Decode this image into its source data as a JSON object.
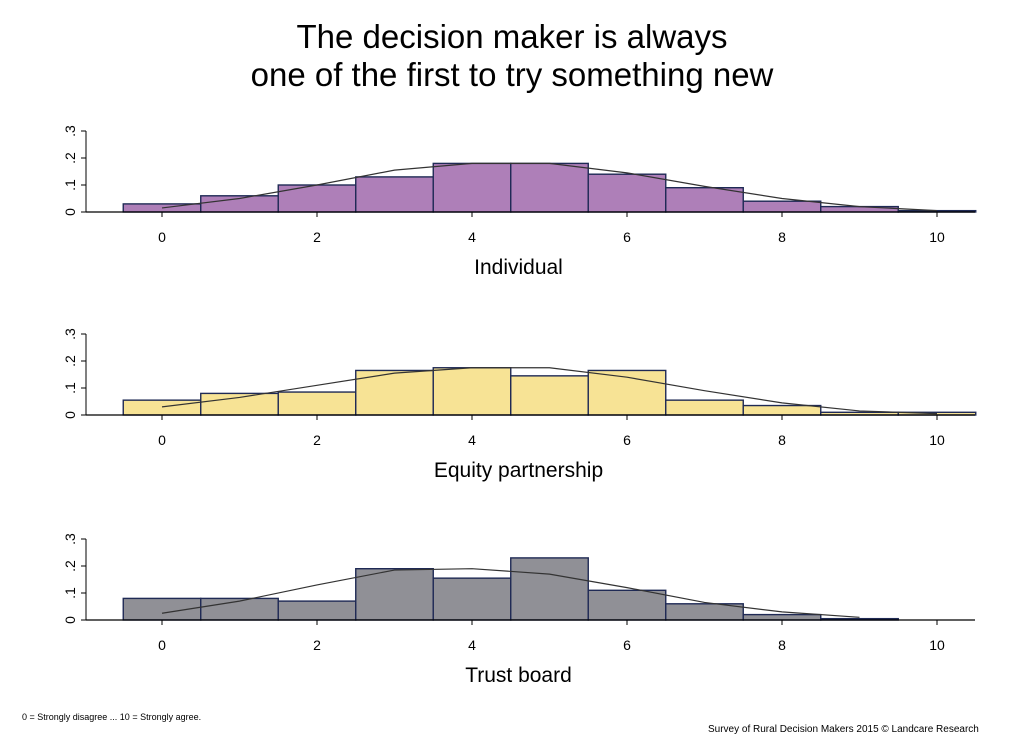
{
  "title_lines": [
    "The decision maker is always",
    "one of the first to try something new"
  ],
  "footnote_left": "0 = Strongly disagree ... 10 = Strongly agree.",
  "footnote_right": "Survey of Rural Decision Makers 2015 © Landcare Research",
  "chart_data": [
    {
      "type": "bar",
      "title": "Individual",
      "fill": "#ae7fb8",
      "x": [
        0,
        1,
        2,
        3,
        4,
        5,
        6,
        7,
        8,
        9,
        10
      ],
      "values": [
        0.03,
        0.06,
        0.1,
        0.13,
        0.18,
        0.18,
        0.14,
        0.09,
        0.04,
        0.02,
        0.005
      ],
      "curve": [
        0.015,
        0.05,
        0.1,
        0.155,
        0.18,
        0.18,
        0.145,
        0.095,
        0.05,
        0.02,
        0.005
      ],
      "xticks": [
        "0",
        "2",
        "4",
        "6",
        "8",
        "10"
      ],
      "yticks": [
        "0",
        ".1",
        ".2",
        ".3"
      ],
      "xlim": [
        -0.5,
        10.5
      ],
      "ylim": [
        0,
        0.3
      ]
    },
    {
      "type": "bar",
      "title": "Equity partnership",
      "fill": "#f7e395",
      "x": [
        0,
        1,
        2,
        3,
        4,
        5,
        6,
        7,
        8,
        9,
        10
      ],
      "values": [
        0.055,
        0.08,
        0.085,
        0.165,
        0.175,
        0.145,
        0.165,
        0.055,
        0.035,
        0.01,
        0.01
      ],
      "curve": [
        0.03,
        0.065,
        0.11,
        0.155,
        0.175,
        0.175,
        0.14,
        0.09,
        0.045,
        0.015,
        0.005
      ],
      "xticks": [
        "0",
        "2",
        "4",
        "6",
        "8",
        "10"
      ],
      "yticks": [
        "0",
        ".1",
        ".2",
        ".3"
      ],
      "xlim": [
        -0.5,
        10.5
      ],
      "ylim": [
        0,
        0.3
      ]
    },
    {
      "type": "bar",
      "title": "Trust board",
      "fill": "#909096",
      "x": [
        0,
        1,
        2,
        3,
        4,
        5,
        6,
        7,
        8,
        9
      ],
      "values": [
        0.08,
        0.08,
        0.07,
        0.19,
        0.155,
        0.23,
        0.11,
        0.06,
        0.02,
        0.005
      ],
      "curve": [
        0.025,
        0.07,
        0.13,
        0.185,
        0.19,
        0.17,
        0.12,
        0.065,
        0.03,
        0.01
      ],
      "xticks": [
        "0",
        "2",
        "4",
        "6",
        "8",
        "10"
      ],
      "yticks": [
        "0",
        ".1",
        ".2",
        ".3"
      ],
      "xlim": [
        -0.5,
        10.5
      ],
      "ylim": [
        0,
        0.3
      ]
    }
  ]
}
